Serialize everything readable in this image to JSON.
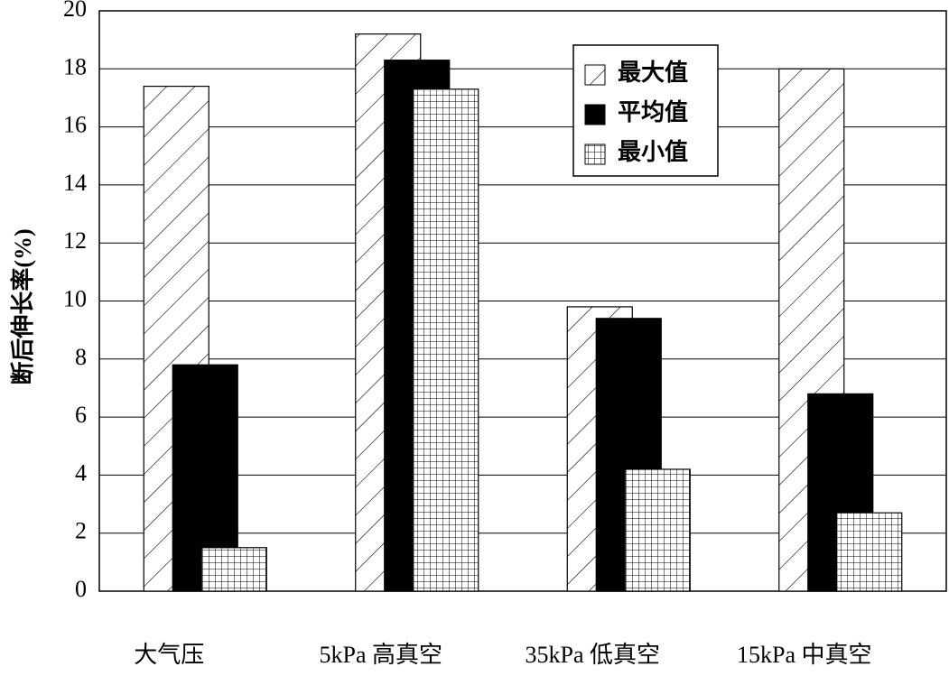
{
  "chart_data": {
    "type": "bar",
    "y_label": "断后伸长率(%)",
    "categories": [
      "大气压",
      "5kPa 高真空",
      "35kPa 低真空",
      "15kPa 中真空"
    ],
    "series": [
      {
        "name": "最大值",
        "color": "#ffffff",
        "pattern": "hatch",
        "values": [
          17.4,
          19.2,
          9.8,
          18.0
        ]
      },
      {
        "name": "平均值",
        "color": "#000000",
        "pattern": "solid",
        "values": [
          7.8,
          18.3,
          9.4,
          6.8
        ]
      },
      {
        "name": "最小值",
        "color": "#ffffff",
        "pattern": "grid",
        "values": [
          1.5,
          17.3,
          4.2,
          2.7
        ]
      }
    ],
    "ylim": [
      0,
      20
    ],
    "yticks": [
      0,
      2,
      4,
      6,
      8,
      10,
      12,
      14,
      16,
      18,
      20
    ],
    "grid": true
  }
}
